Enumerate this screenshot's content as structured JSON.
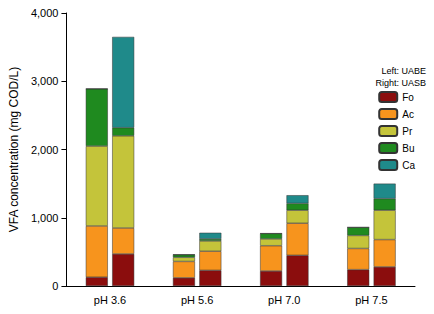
{
  "chart_data": {
    "type": "bar",
    "stacked": true,
    "ylabel": "VFA concentration (mg COD/L)",
    "categories": [
      "pH 3.6",
      "pH 5.6",
      "pH 7.0",
      "pH 7.5"
    ],
    "annotations": [
      "Left: UABE",
      "Right: UASB"
    ],
    "groups": [
      {
        "name": "UABE",
        "series": [
          {
            "name": "Fo",
            "color": "#8b0d0d",
            "values": [
              130,
              120,
              220,
              240
            ]
          },
          {
            "name": "Ac",
            "color": "#f7941d",
            "values": [
              750,
              240,
              370,
              310
            ]
          },
          {
            "name": "Pr",
            "color": "#c4c43a",
            "values": [
              1170,
              60,
              100,
              190
            ]
          },
          {
            "name": "Bu",
            "color": "#1f8a1f",
            "values": [
              840,
              40,
              80,
              120
            ]
          },
          {
            "name": "Ca",
            "color": "#1f8a8a",
            "values": [
              0,
              0,
              0,
              0
            ]
          }
        ]
      },
      {
        "name": "UASB",
        "series": [
          {
            "name": "Fo",
            "color": "#8b0d0d",
            "values": [
              470,
              230,
              450,
              280
            ]
          },
          {
            "name": "Ac",
            "color": "#f7941d",
            "values": [
              380,
              280,
              470,
              400
            ]
          },
          {
            "name": "Pr",
            "color": "#c4c43a",
            "values": [
              1350,
              150,
              190,
              430
            ]
          },
          {
            "name": "Bu",
            "color": "#1f8a1f",
            "values": [
              120,
              30,
              100,
              170
            ]
          },
          {
            "name": "Ca",
            "color": "#1f8a8a",
            "values": [
              1330,
              90,
              120,
              220
            ]
          }
        ]
      }
    ],
    "ylim": [
      0,
      4000
    ],
    "yticks": [
      0,
      1000,
      2000,
      3000,
      4000
    ],
    "legend": "upper right",
    "grid": false
  }
}
